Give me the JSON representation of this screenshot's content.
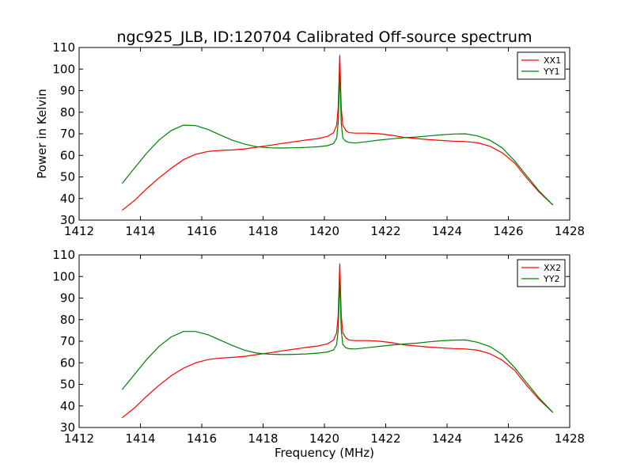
{
  "chart_data": {
    "title": "ngc925_JLB, ID:120704 Calibrated Off-source spectrum",
    "xlabel": "Frequency (MHz)",
    "ylabel": "Power in Kelvin",
    "panels": [
      {
        "type": "line",
        "xlim": [
          1412,
          1428
        ],
        "ylim": [
          30,
          110
        ],
        "xticks": [
          1412,
          1414,
          1416,
          1418,
          1420,
          1422,
          1424,
          1426,
          1428
        ],
        "yticks": [
          30,
          40,
          50,
          60,
          70,
          80,
          90,
          100,
          110
        ],
        "grid": false,
        "legend_position": "top-right",
        "series": [
          {
            "name": "XX1",
            "color": "#ff0000",
            "x": [
              1413.4,
              1413.8,
              1414.2,
              1414.6,
              1415.0,
              1415.4,
              1415.8,
              1416.2,
              1416.6,
              1417.0,
              1417.4,
              1417.8,
              1418.2,
              1418.6,
              1419.0,
              1419.4,
              1419.8,
              1420.1,
              1420.3,
              1420.4,
              1420.45,
              1420.5,
              1420.55,
              1420.6,
              1420.7,
              1420.8,
              1421.0,
              1421.4,
              1421.8,
              1422.2,
              1422.6,
              1423.0,
              1423.4,
              1423.8,
              1424.2,
              1424.6,
              1425.0,
              1425.4,
              1425.8,
              1426.2,
              1426.6,
              1427.0,
              1427.45
            ],
            "y": [
              34.5,
              39,
              44.5,
              49.5,
              54,
              58,
              60.5,
              61.8,
              62.3,
              62.5,
              63.0,
              63.8,
              64.6,
              65.5,
              66.3,
              67.1,
              67.8,
              68.8,
              70.5,
              74,
              82,
              106.5,
              82,
              74,
              71.5,
              70.5,
              70.3,
              70.3,
              70.0,
              69.3,
              68.3,
              67.8,
              67.3,
              66.9,
              66.6,
              66.4,
              65.8,
              64.2,
              61.2,
              56.5,
              49.5,
              43,
              37
            ]
          },
          {
            "name": "YY1",
            "color": "#008000",
            "x": [
              1413.4,
              1413.8,
              1414.2,
              1414.6,
              1415.0,
              1415.4,
              1415.8,
              1416.2,
              1416.6,
              1417.0,
              1417.4,
              1417.8,
              1418.2,
              1418.6,
              1419.0,
              1419.4,
              1419.8,
              1420.1,
              1420.3,
              1420.4,
              1420.45,
              1420.5,
              1420.55,
              1420.6,
              1420.7,
              1420.8,
              1421.0,
              1421.4,
              1421.8,
              1422.2,
              1422.6,
              1423.0,
              1423.4,
              1423.8,
              1424.2,
              1424.6,
              1425.0,
              1425.4,
              1425.8,
              1426.2,
              1426.6,
              1427.0,
              1427.45
            ],
            "y": [
              47,
              54,
              61,
              67,
              71.5,
              74,
              73.8,
              72,
              69.5,
              67,
              65.2,
              64.0,
              63.5,
              63.4,
              63.5,
              63.7,
              64.0,
              64.5,
              65.5,
              68,
              75,
              98,
              75,
              68,
              66.5,
              66,
              65.7,
              66.4,
              67.1,
              67.7,
              68.2,
              68.5,
              69.0,
              69.5,
              69.9,
              70,
              69,
              67,
              63.5,
              57.5,
              50.5,
              43.5,
              37
            ]
          }
        ]
      },
      {
        "type": "line",
        "xlim": [
          1412,
          1428
        ],
        "ylim": [
          30,
          110
        ],
        "xticks": [
          1412,
          1414,
          1416,
          1418,
          1420,
          1422,
          1424,
          1426,
          1428
        ],
        "yticks": [
          30,
          40,
          50,
          60,
          70,
          80,
          90,
          100,
          110
        ],
        "grid": false,
        "legend_position": "top-right",
        "series": [
          {
            "name": "XX2",
            "color": "#ff0000",
            "x": [
              1413.4,
              1413.8,
              1414.2,
              1414.6,
              1415.0,
              1415.4,
              1415.8,
              1416.2,
              1416.6,
              1417.0,
              1417.4,
              1417.8,
              1418.2,
              1418.6,
              1419.0,
              1419.4,
              1419.8,
              1420.1,
              1420.3,
              1420.4,
              1420.45,
              1420.5,
              1420.55,
              1420.6,
              1420.7,
              1420.8,
              1421.0,
              1421.4,
              1421.8,
              1422.2,
              1422.6,
              1423.0,
              1423.4,
              1423.8,
              1424.2,
              1424.6,
              1425.0,
              1425.4,
              1425.8,
              1426.2,
              1426.6,
              1427.0,
              1427.45
            ],
            "y": [
              34.5,
              39,
              44.5,
              49.5,
              54,
              57.5,
              60,
              61.5,
              62.2,
              62.5,
              63.0,
              63.8,
              64.6,
              65.5,
              66.3,
              67.1,
              67.8,
              68.8,
              70.5,
              74,
              82,
              106,
              82,
              74,
              71.5,
              70.5,
              70.3,
              70.3,
              70.0,
              69.3,
              68.3,
              67.8,
              67.3,
              66.9,
              66.6,
              66.4,
              65.8,
              64.2,
              61.2,
              56.5,
              49.5,
              43,
              37
            ]
          },
          {
            "name": "YY2",
            "color": "#008000",
            "x": [
              1413.4,
              1413.8,
              1414.2,
              1414.6,
              1415.0,
              1415.4,
              1415.8,
              1416.2,
              1416.6,
              1417.0,
              1417.4,
              1417.8,
              1418.2,
              1418.6,
              1419.0,
              1419.4,
              1419.8,
              1420.1,
              1420.3,
              1420.4,
              1420.45,
              1420.5,
              1420.55,
              1420.6,
              1420.7,
              1420.8,
              1421.0,
              1421.4,
              1421.8,
              1422.2,
              1422.6,
              1423.0,
              1423.4,
              1423.8,
              1424.2,
              1424.6,
              1425.0,
              1425.4,
              1425.8,
              1426.2,
              1426.6,
              1427.0,
              1427.45
            ],
            "y": [
              47.5,
              54.5,
              61.5,
              67.5,
              72,
              74.5,
              74.5,
              73,
              70.5,
              68,
              65.8,
              64.5,
              64.0,
              63.8,
              63.9,
              64.1,
              64.5,
              65,
              66,
              68.5,
              75,
              99,
              75,
              68.5,
              67,
              66.5,
              66.4,
              67.0,
              67.6,
              68.2,
              68.7,
              69.1,
              69.7,
              70.2,
              70.5,
              70.6,
              69.5,
              67.5,
              63.8,
              57.8,
              50.7,
              43.7,
              37
            ]
          }
        ]
      }
    ]
  }
}
